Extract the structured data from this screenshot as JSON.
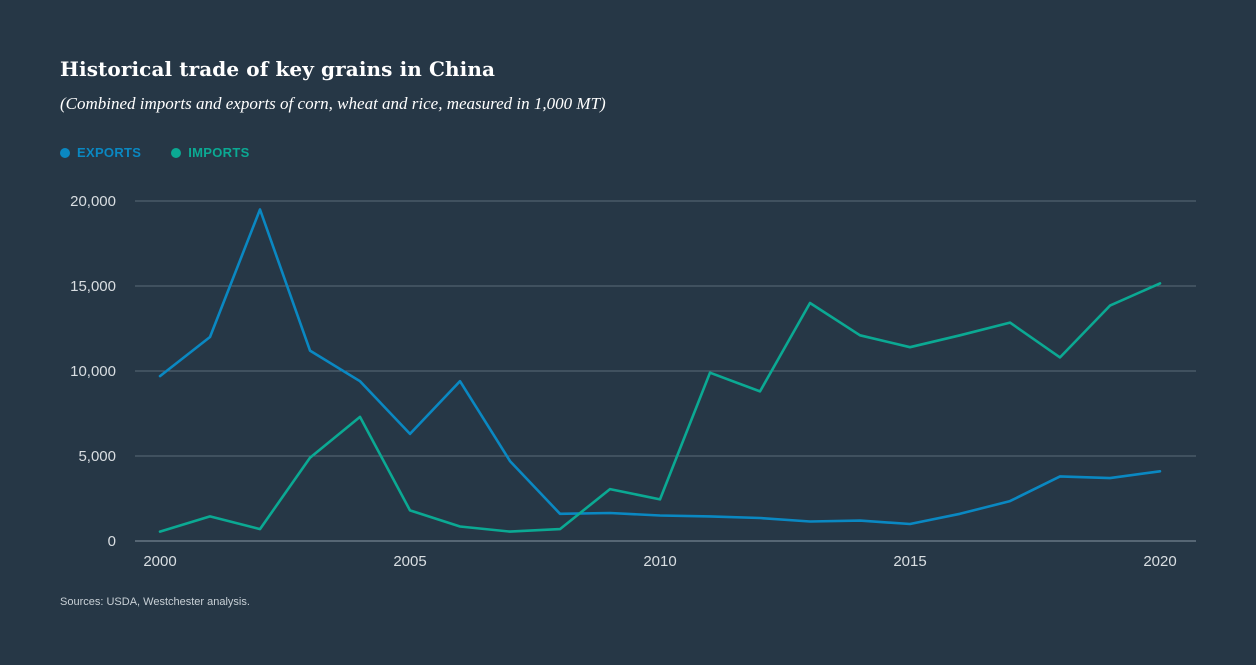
{
  "colors": {
    "background": "#263746",
    "exports": "#0a88c2",
    "imports": "#0ba993",
    "gridline": "#5a6b78",
    "tick_text": "#d9dee2"
  },
  "chart_data": {
    "type": "line",
    "title": "Historical trade of key grains in China",
    "subtitle": "(Combined imports and exports of corn, wheat and rice, measured in 1,000 MT)",
    "xlabel": "",
    "ylabel": "",
    "x": [
      2000,
      2001,
      2002,
      2003,
      2004,
      2005,
      2006,
      2007,
      2008,
      2009,
      2010,
      2011,
      2012,
      2013,
      2014,
      2015,
      2016,
      2017,
      2018,
      2019,
      2020
    ],
    "series": [
      {
        "name": "EXPORTS",
        "color": "#0a88c2",
        "values": [
          9700,
          12000,
          19500,
          11200,
          9400,
          6300,
          9400,
          4700,
          1600,
          1650,
          1500,
          1450,
          1350,
          1150,
          1200,
          1000,
          1600,
          2350,
          3800,
          3700,
          4100
        ]
      },
      {
        "name": "IMPORTS",
        "color": "#0ba993",
        "values": [
          550,
          1450,
          700,
          4900,
          7300,
          1800,
          850,
          550,
          700,
          3050,
          2450,
          9900,
          8800,
          14000,
          12100,
          11400,
          12100,
          12850,
          10800,
          13850,
          15150
        ]
      }
    ],
    "ylim": [
      0,
      20000
    ],
    "xlim": [
      2000,
      2020
    ],
    "y_ticks": [
      0,
      5000,
      10000,
      15000,
      20000
    ],
    "y_tick_labels": [
      "0",
      "5,000",
      "10,000",
      "15,000",
      "20,000"
    ],
    "x_ticks": [
      2000,
      2005,
      2010,
      2015,
      2020
    ],
    "x_tick_labels": [
      "2000",
      "2005",
      "2010",
      "2015",
      "2020"
    ],
    "grid": true,
    "legend_position": "top-left"
  },
  "source": "Sources: USDA, Westchester analysis."
}
